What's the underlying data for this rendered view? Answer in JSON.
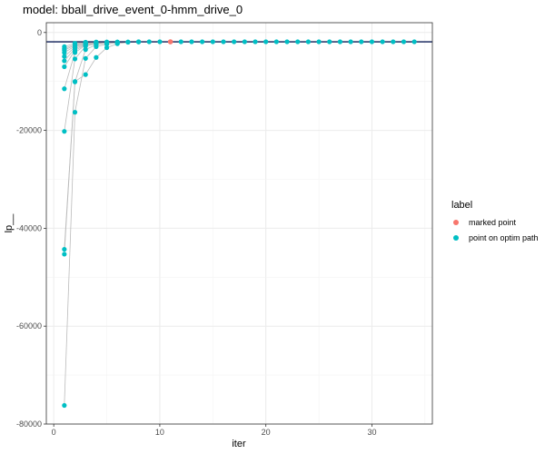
{
  "chart_data": {
    "type": "scatter",
    "title": "model: bball_drive_event_0-hmm_drive_0",
    "xlabel": "iter",
    "ylabel": "lp__",
    "xlim": [
      -0.7,
      35.7
    ],
    "ylim": [
      -80000,
      2000
    ],
    "x_ticks": [
      0,
      10,
      20,
      30
    ],
    "y_ticks": [
      0,
      -20000,
      -40000,
      -60000,
      -80000
    ],
    "x_tick_labels": [
      "0",
      "10",
      "20",
      "30"
    ],
    "y_tick_labels": [
      "0",
      "-20000",
      "-40000",
      "-60000",
      "-80000"
    ],
    "grid": true,
    "legend": {
      "title": "label",
      "position": "right",
      "entries": [
        {
          "label": "marked point",
          "color": "#F8766D"
        },
        {
          "label": "point on optim path",
          "color": "#00BFC4"
        }
      ]
    },
    "reference_line": {
      "y": -1900,
      "color": "#0a1a55"
    },
    "path_color": "#bbbbbb",
    "marked_point": {
      "x": 11,
      "y": -1900
    },
    "optim_paths": [
      {
        "points": [
          [
            1,
            -76200
          ],
          [
            2,
            -16300
          ],
          [
            3,
            -5300
          ],
          [
            4,
            -2900
          ],
          [
            5,
            -2400
          ],
          [
            6,
            -2100
          ],
          [
            7,
            -1950
          ],
          [
            8,
            -1920
          ]
        ]
      },
      {
        "points": [
          [
            1,
            -45300
          ],
          [
            2,
            -10100
          ],
          [
            3,
            -3500
          ],
          [
            4,
            -2500
          ],
          [
            5,
            -2150
          ],
          [
            6,
            -1980
          ],
          [
            7,
            -1930
          ]
        ]
      },
      {
        "points": [
          [
            1,
            -44300
          ],
          [
            2,
            -10000
          ],
          [
            3,
            -8600
          ],
          [
            4,
            -5100
          ],
          [
            5,
            -3100
          ],
          [
            6,
            -2300
          ],
          [
            7,
            -2000
          ],
          [
            8,
            -1920
          ]
        ]
      },
      {
        "points": [
          [
            1,
            -20200
          ],
          [
            2,
            -5400
          ],
          [
            3,
            -2800
          ],
          [
            4,
            -2300
          ],
          [
            5,
            -2050
          ],
          [
            6,
            -1960
          ]
        ]
      },
      {
        "points": [
          [
            1,
            -11500
          ],
          [
            2,
            -4100
          ],
          [
            3,
            -2600
          ],
          [
            4,
            -2200
          ],
          [
            5,
            -2000
          ],
          [
            6,
            -1940
          ]
        ]
      },
      {
        "points": [
          [
            1,
            -7000
          ],
          [
            2,
            -3700
          ],
          [
            3,
            -2450
          ],
          [
            4,
            -2100
          ],
          [
            5,
            -1980
          ]
        ]
      },
      {
        "points": [
          [
            1,
            -5800
          ],
          [
            2,
            -3300
          ],
          [
            3,
            -2400
          ],
          [
            4,
            -2050
          ],
          [
            5,
            -1950
          ]
        ]
      },
      {
        "points": [
          [
            1,
            -4900
          ],
          [
            2,
            -3000
          ],
          [
            3,
            -2300
          ],
          [
            4,
            -2000
          ],
          [
            5,
            -1940
          ]
        ]
      },
      {
        "points": [
          [
            1,
            -4100
          ],
          [
            2,
            -2800
          ],
          [
            3,
            -2200
          ],
          [
            4,
            -1980
          ]
        ]
      },
      {
        "points": [
          [
            1,
            -3600
          ],
          [
            2,
            -2600
          ],
          [
            3,
            -2100
          ],
          [
            4,
            -1960
          ]
        ]
      },
      {
        "points": [
          [
            1,
            -3300
          ],
          [
            2,
            -2400
          ],
          [
            3,
            -2050
          ],
          [
            4,
            -1950
          ]
        ]
      },
      {
        "points": [
          [
            1,
            -2900
          ],
          [
            2,
            -2200
          ],
          [
            3,
            -1980
          ]
        ]
      }
    ],
    "converged_points": {
      "x_from": 8,
      "x_to": 34,
      "y": -1900
    }
  }
}
